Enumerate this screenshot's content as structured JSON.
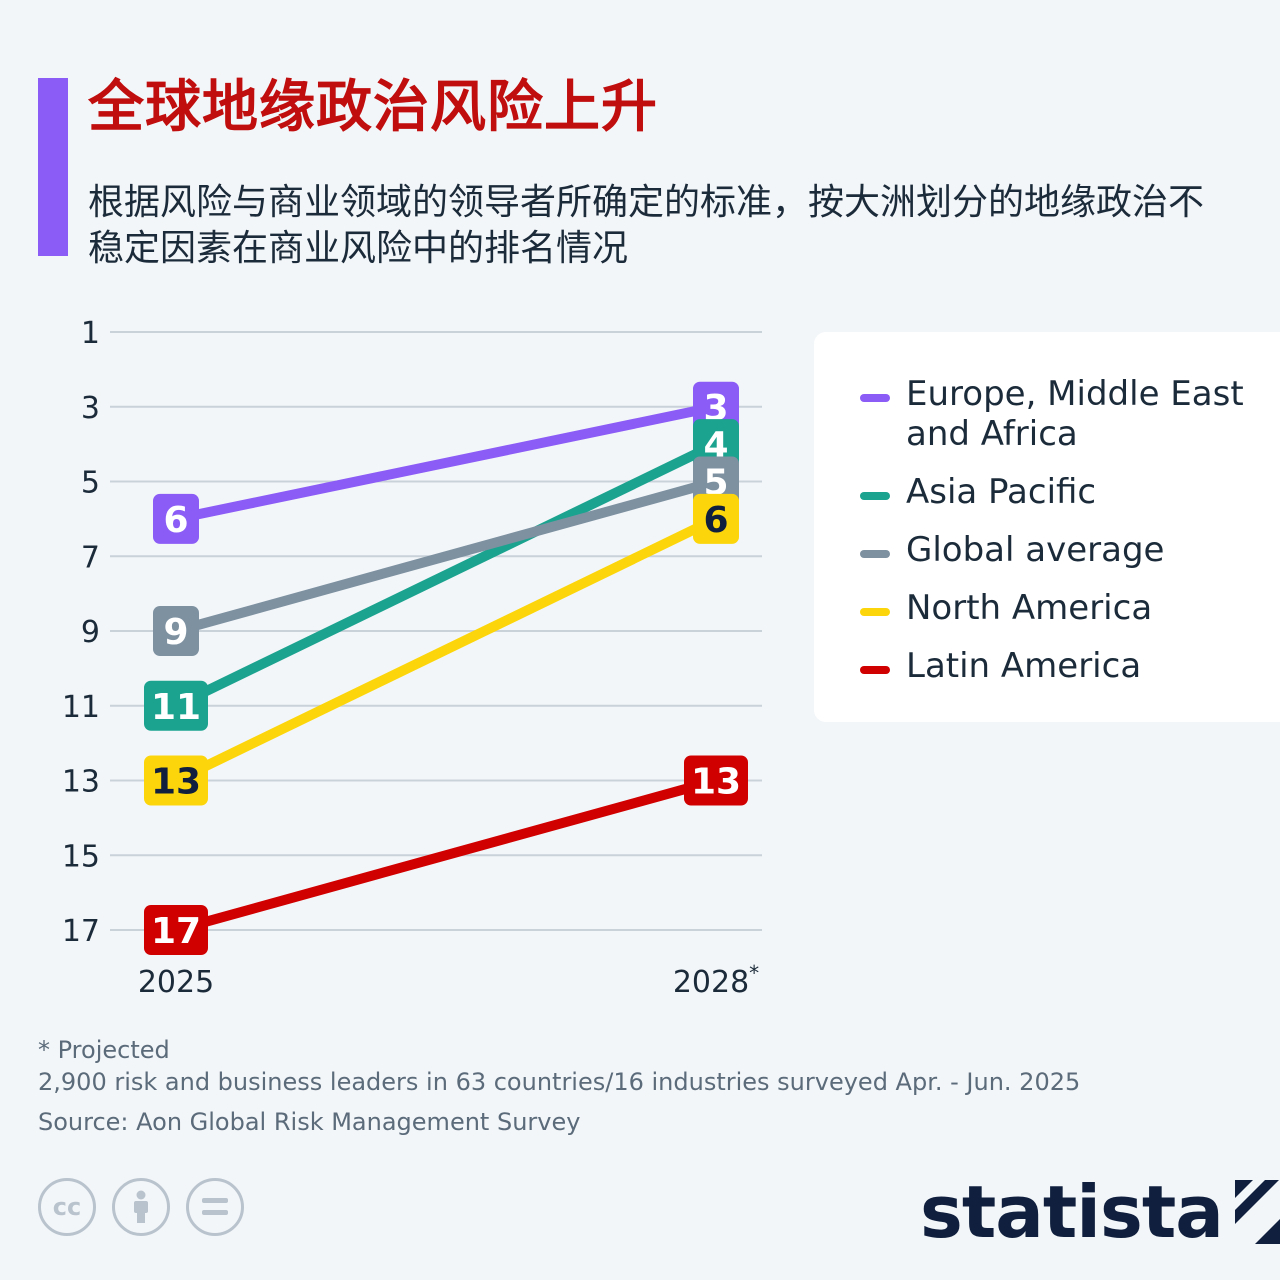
{
  "header": {
    "title": "全球地缘政治风险上升",
    "subtitle": "根据风险与商业领域的领导者所确定的标准，按大洲划分的地缘政治不稳定因素在商业风险中的排名情况"
  },
  "colors": {
    "accent": "#8b5cf6",
    "title": "#c00d0d",
    "grid": "#c9d1d9",
    "text": "#1c2b3a"
  },
  "chart_data": {
    "type": "line",
    "x": [
      "2025",
      "2028*"
    ],
    "y_ticks": [
      1,
      3,
      5,
      7,
      9,
      11,
      13,
      15,
      17
    ],
    "ylim": [
      1,
      17
    ],
    "y_reversed": true,
    "grid": true,
    "legend_position": "right",
    "series": [
      {
        "name": "Europe, Middle East and Africa",
        "values": [
          6,
          3
        ],
        "color": "#8b5cf6",
        "label_color": "#ffffff"
      },
      {
        "name": "Asia Pacific",
        "values": [
          11,
          4
        ],
        "color": "#1ba38f",
        "label_color": "#ffffff"
      },
      {
        "name": "Global average",
        "values": [
          9,
          5
        ],
        "color": "#7d91a1",
        "label_color": "#ffffff"
      },
      {
        "name": "North America",
        "values": [
          13,
          6
        ],
        "color": "#fcd60a",
        "label_color": "#0f1f3d"
      },
      {
        "name": "Latin America",
        "values": [
          17,
          13
        ],
        "color": "#d00000",
        "label_color": "#ffffff"
      }
    ]
  },
  "legend": {
    "items": [
      {
        "label": "Europe, Middle East and Africa",
        "color": "#8b5cf6"
      },
      {
        "label": "Asia Pacific",
        "color": "#1ba38f"
      },
      {
        "label": "Global average",
        "color": "#7d91a1"
      },
      {
        "label": "North America",
        "color": "#fcd60a"
      },
      {
        "label": "Latin America",
        "color": "#d00000"
      }
    ]
  },
  "footer": {
    "projected": "* Projected",
    "survey": "2,900 risk and business leaders in 63 countries/16 industries surveyed Apr. - Jun. 2025",
    "source": "Source: Aon Global Risk Management Survey",
    "brand": "statista",
    "icons": [
      "cc-icon",
      "person-icon",
      "equals-icon"
    ]
  }
}
